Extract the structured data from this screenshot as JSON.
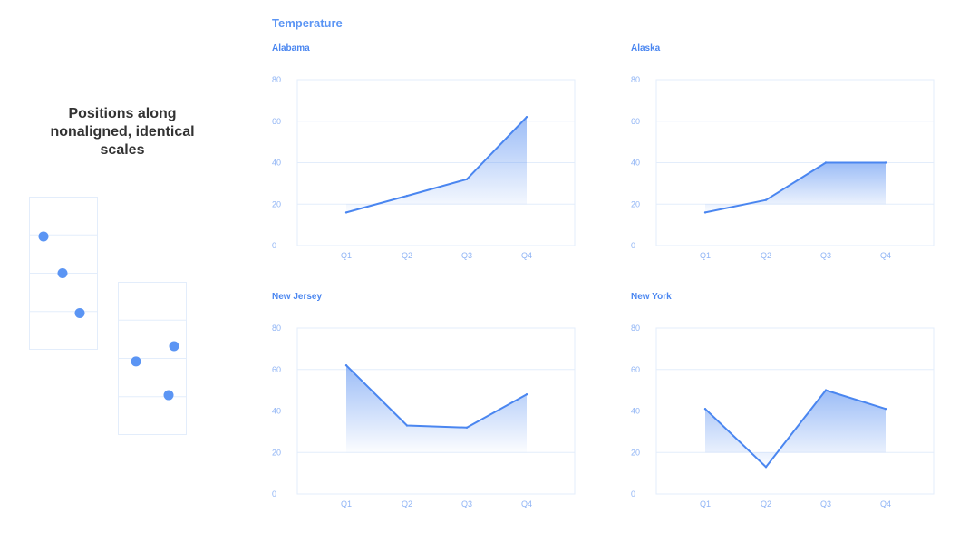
{
  "caption": "Positions along nonaligned, identical scales",
  "colors": {
    "accent": "#4a86f0",
    "dot": "#5b95f4",
    "grid": "#e3edfb",
    "axis_text": "#8fb4f5"
  },
  "legend_illustration": {
    "boxes": [
      {
        "dots": [
          0.74,
          0.5,
          0.24
        ]
      },
      {
        "dots": [
          0.48,
          0.58,
          0.26
        ]
      }
    ]
  },
  "chart_data": {
    "type": "area",
    "title": "Temperature",
    "categories": [
      "Q1",
      "Q2",
      "Q3",
      "Q4"
    ],
    "ylim": [
      0,
      80
    ],
    "yticks": [
      0,
      20,
      40,
      60,
      80
    ],
    "grid": true,
    "panels": [
      {
        "name": "Alabama",
        "values": [
          16,
          24,
          32,
          62
        ]
      },
      {
        "name": "Alaska",
        "values": [
          16,
          22,
          40,
          40
        ]
      },
      {
        "name": "New Jersey",
        "values": [
          62,
          33,
          32,
          48
        ]
      },
      {
        "name": "New York",
        "values": [
          41,
          13,
          50,
          41
        ]
      }
    ]
  }
}
